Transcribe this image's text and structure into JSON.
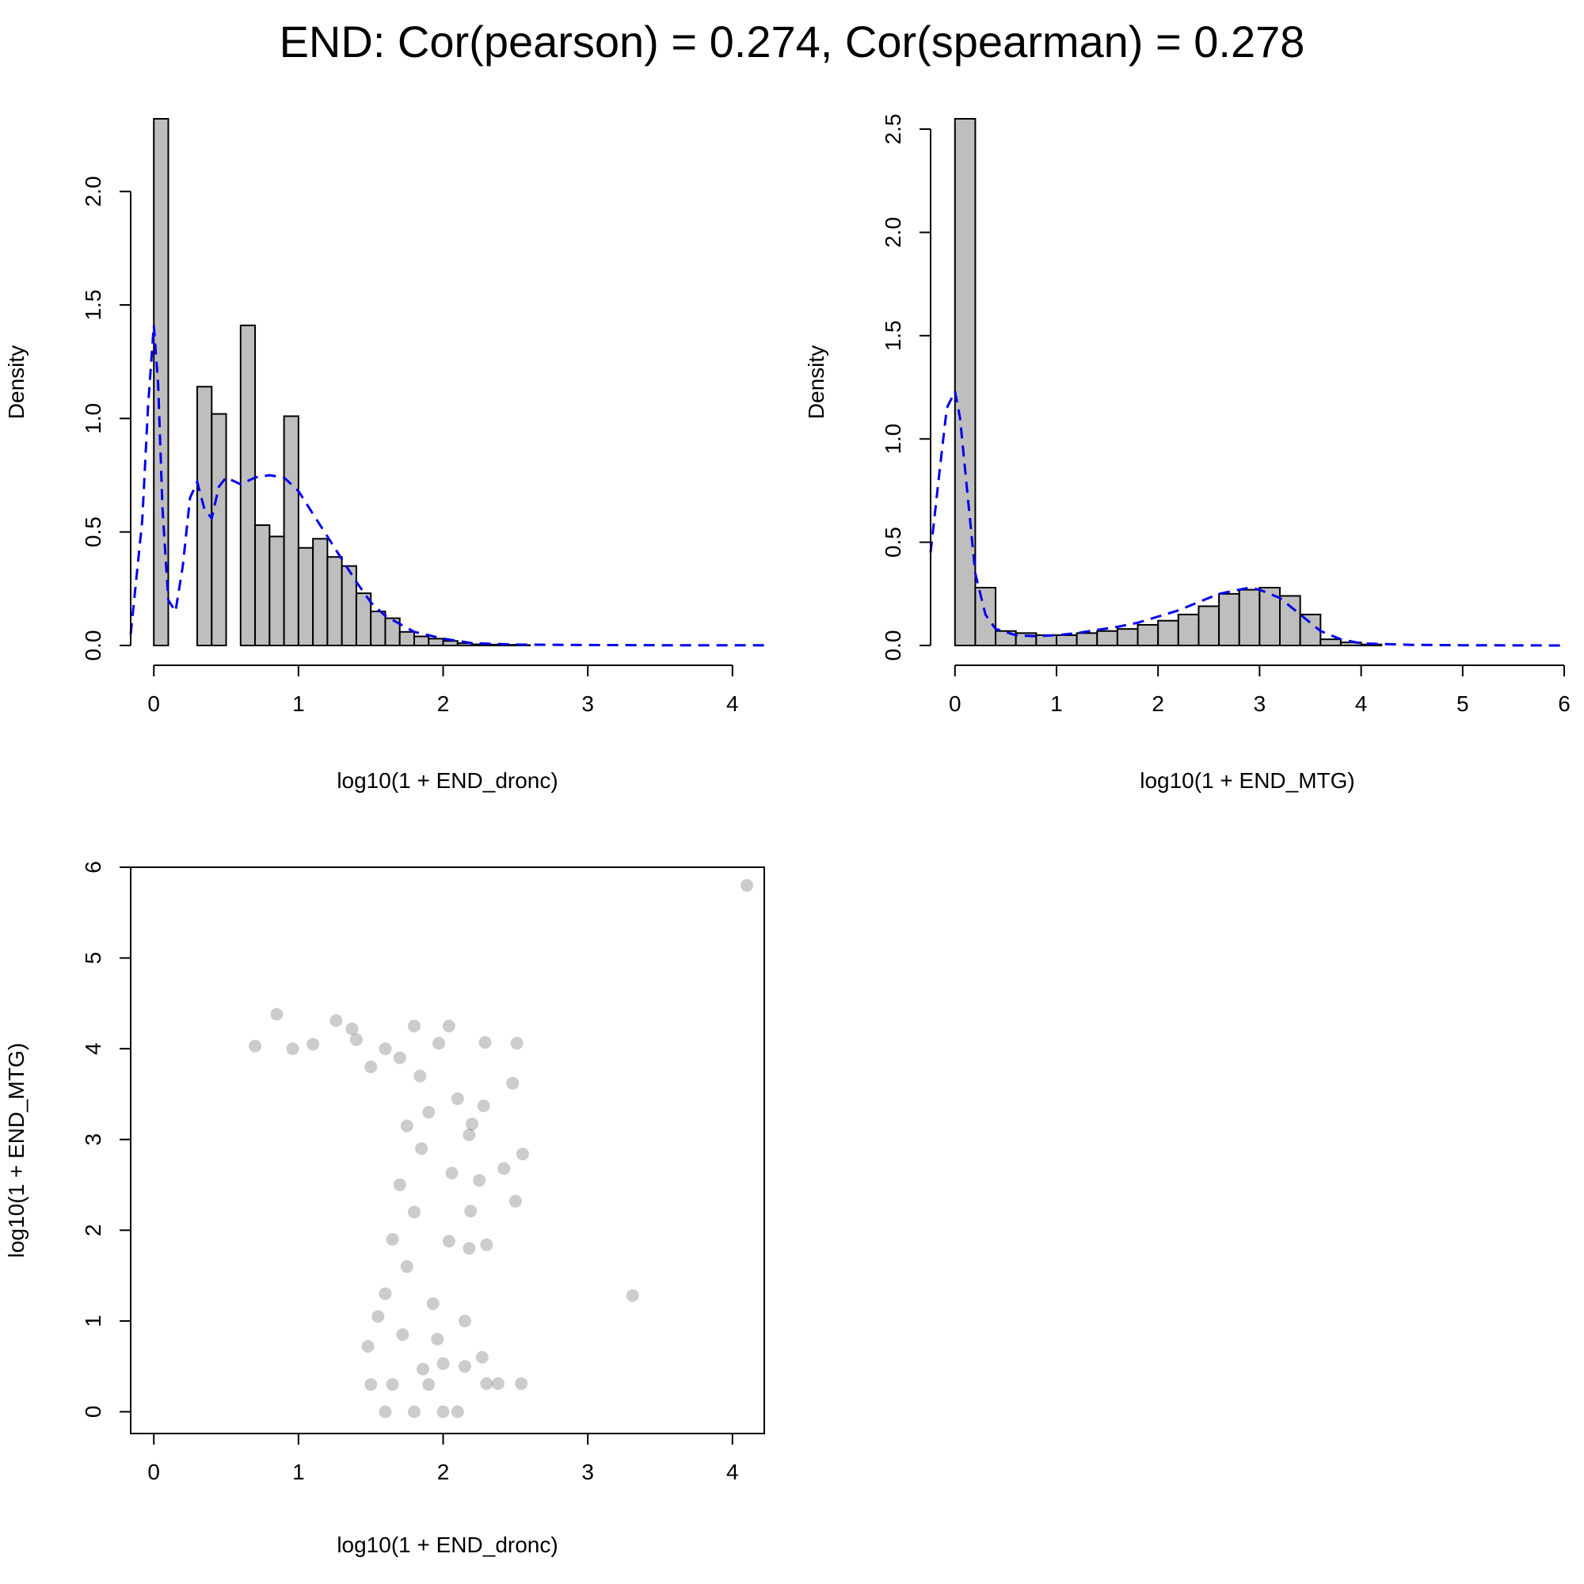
{
  "title": "END: Cor(pearson) = 0.274, Cor(spearman) = 0.278",
  "colors": {
    "bar_fill": "#bebebe",
    "bar_stroke": "#000000",
    "density": "#0000ee",
    "points": "#000000"
  },
  "chart_data": [
    {
      "type": "bar",
      "subtype": "histogram",
      "xlabel": "log10(1 + END_dronc)",
      "ylabel": "Density",
      "xlim": [
        -0.16,
        4.22
      ],
      "ylim": [
        0,
        2.32
      ],
      "x_ticks": [
        0,
        1,
        2,
        3,
        4
      ],
      "y_ticks": [
        0.0,
        0.5,
        1.0,
        1.5,
        2.0
      ],
      "y_tick_labels": [
        "0.0",
        "0.5",
        "1.0",
        "1.5",
        "2.0"
      ],
      "bin_width": 0.1,
      "bins": [
        {
          "x0": 0.0,
          "v": 2.32
        },
        {
          "x0": 0.1,
          "v": 0
        },
        {
          "x0": 0.2,
          "v": 0
        },
        {
          "x0": 0.3,
          "v": 1.14
        },
        {
          "x0": 0.4,
          "v": 1.02
        },
        {
          "x0": 0.5,
          "v": 0
        },
        {
          "x0": 0.6,
          "v": 1.41
        },
        {
          "x0": 0.7,
          "v": 0.53
        },
        {
          "x0": 0.8,
          "v": 0.48
        },
        {
          "x0": 0.9,
          "v": 1.01
        },
        {
          "x0": 1.0,
          "v": 0.43
        },
        {
          "x0": 1.1,
          "v": 0.47
        },
        {
          "x0": 1.2,
          "v": 0.39
        },
        {
          "x0": 1.3,
          "v": 0.35
        },
        {
          "x0": 1.4,
          "v": 0.23
        },
        {
          "x0": 1.5,
          "v": 0.15
        },
        {
          "x0": 1.6,
          "v": 0.12
        },
        {
          "x0": 1.7,
          "v": 0.06
        },
        {
          "x0": 1.8,
          "v": 0.04
        },
        {
          "x0": 1.9,
          "v": 0.03
        },
        {
          "x0": 2.0,
          "v": 0.02
        },
        {
          "x0": 2.1,
          "v": 0.01
        },
        {
          "x0": 2.2,
          "v": 0.005
        },
        {
          "x0": 2.3,
          "v": 0.004
        },
        {
          "x0": 2.4,
          "v": 0.003
        },
        {
          "x0": 2.5,
          "v": 0.002
        }
      ],
      "density": {
        "x": [
          -0.16,
          -0.08,
          -0.04,
          0.0,
          0.03,
          0.06,
          0.1,
          0.15,
          0.2,
          0.25,
          0.3,
          0.35,
          0.4,
          0.45,
          0.5,
          0.6,
          0.7,
          0.8,
          0.9,
          1.0,
          1.1,
          1.2,
          1.3,
          1.4,
          1.5,
          1.6,
          1.8,
          2.0,
          2.2,
          2.5,
          3.0,
          3.5,
          4.22
        ],
        "y": [
          0.05,
          0.55,
          1.05,
          1.41,
          1.15,
          0.6,
          0.2,
          0.15,
          0.35,
          0.65,
          0.72,
          0.6,
          0.56,
          0.7,
          0.74,
          0.71,
          0.74,
          0.75,
          0.74,
          0.68,
          0.58,
          0.48,
          0.38,
          0.28,
          0.19,
          0.13,
          0.06,
          0.03,
          0.01,
          0.004,
          0.002,
          0.001,
          0.001
        ]
      }
    },
    {
      "type": "bar",
      "subtype": "histogram",
      "xlabel": "log10(1 + END_MTG)",
      "ylabel": "Density",
      "xlim": [
        -0.24,
        6.0
      ],
      "ylim": [
        0,
        2.55
      ],
      "x_ticks": [
        0,
        1,
        2,
        3,
        4,
        5,
        6
      ],
      "y_ticks": [
        0.0,
        0.5,
        1.0,
        1.5,
        2.0,
        2.5
      ],
      "y_tick_labels": [
        "0.0",
        "0.5",
        "1.0",
        "1.5",
        "2.0",
        "2.5"
      ],
      "bin_width": 0.2,
      "bins": [
        {
          "x0": 0.0,
          "v": 2.55
        },
        {
          "x0": 0.2,
          "v": 0.28
        },
        {
          "x0": 0.4,
          "v": 0.07
        },
        {
          "x0": 0.6,
          "v": 0.06
        },
        {
          "x0": 0.8,
          "v": 0.05
        },
        {
          "x0": 1.0,
          "v": 0.05
        },
        {
          "x0": 1.2,
          "v": 0.06
        },
        {
          "x0": 1.4,
          "v": 0.07
        },
        {
          "x0": 1.6,
          "v": 0.08
        },
        {
          "x0": 1.8,
          "v": 0.1
        },
        {
          "x0": 2.0,
          "v": 0.12
        },
        {
          "x0": 2.2,
          "v": 0.15
        },
        {
          "x0": 2.4,
          "v": 0.19
        },
        {
          "x0": 2.6,
          "v": 0.25
        },
        {
          "x0": 2.8,
          "v": 0.27
        },
        {
          "x0": 3.0,
          "v": 0.28
        },
        {
          "x0": 3.2,
          "v": 0.24
        },
        {
          "x0": 3.4,
          "v": 0.15
        },
        {
          "x0": 3.6,
          "v": 0.03
        },
        {
          "x0": 3.8,
          "v": 0.015
        },
        {
          "x0": 4.0,
          "v": 0.005
        }
      ],
      "density": {
        "x": [
          -0.24,
          -0.15,
          -0.08,
          0.0,
          0.05,
          0.1,
          0.15,
          0.2,
          0.3,
          0.4,
          0.6,
          0.8,
          1.0,
          1.2,
          1.4,
          1.6,
          1.8,
          2.0,
          2.2,
          2.4,
          2.6,
          2.8,
          2.9,
          3.0,
          3.2,
          3.4,
          3.6,
          3.8,
          4.0,
          4.5,
          5.0,
          6.0
        ],
        "y": [
          0.45,
          0.85,
          1.15,
          1.23,
          1.1,
          0.85,
          0.6,
          0.35,
          0.15,
          0.08,
          0.05,
          0.045,
          0.05,
          0.06,
          0.075,
          0.09,
          0.11,
          0.14,
          0.17,
          0.21,
          0.25,
          0.27,
          0.28,
          0.27,
          0.23,
          0.15,
          0.07,
          0.03,
          0.01,
          0.003,
          0.001,
          0.0
        ]
      }
    },
    {
      "type": "scatter",
      "xlabel": "log10(1 + END_dronc)",
      "ylabel": "log10(1 + END_MTG)",
      "xlim": [
        -0.16,
        4.22
      ],
      "ylim": [
        -0.24,
        6.0
      ],
      "x_ticks": [
        0,
        1,
        2,
        3,
        4
      ],
      "y_ticks": [
        0,
        1,
        2,
        3,
        4,
        5,
        6
      ],
      "point_color": "#000000",
      "point_alpha": 0.2,
      "points": [
        [
          4.1,
          5.8
        ],
        [
          3.31,
          1.28
        ],
        [
          0.85,
          4.38
        ],
        [
          1.26,
          4.31
        ],
        [
          1.37,
          4.22
        ],
        [
          1.8,
          4.25
        ],
        [
          2.04,
          4.25
        ],
        [
          1.97,
          4.06
        ],
        [
          2.29,
          4.07
        ],
        [
          2.51,
          4.06
        ],
        [
          2.48,
          3.62
        ],
        [
          2.28,
          3.37
        ],
        [
          2.2,
          3.17
        ],
        [
          2.1,
          3.45
        ],
        [
          2.18,
          3.05
        ],
        [
          2.55,
          2.84
        ],
        [
          2.42,
          2.68
        ],
        [
          2.25,
          2.55
        ],
        [
          2.06,
          2.63
        ],
        [
          2.19,
          2.21
        ],
        [
          2.5,
          2.32
        ],
        [
          2.3,
          1.84
        ],
        [
          2.18,
          1.8
        ],
        [
          2.04,
          1.88
        ],
        [
          2.15,
          1.0
        ],
        [
          1.96,
          0.8
        ],
        [
          1.93,
          1.19
        ],
        [
          2.27,
          0.6
        ],
        [
          2.0,
          0.53
        ],
        [
          2.15,
          0.5
        ],
        [
          2.3,
          0.31
        ],
        [
          2.38,
          0.31
        ],
        [
          2.54,
          0.31
        ],
        [
          2.1,
          0.0
        ],
        [
          2.0,
          0.0
        ],
        [
          1.7,
          3.9
        ],
        [
          1.6,
          4.0
        ],
        [
          1.5,
          3.8
        ],
        [
          1.4,
          4.1
        ],
        [
          1.1,
          4.05
        ],
        [
          0.96,
          4.0
        ],
        [
          0.7,
          4.03
        ],
        [
          1.84,
          3.7
        ],
        [
          1.9,
          3.3
        ],
        [
          1.75,
          3.15
        ],
        [
          1.85,
          2.9
        ],
        [
          1.7,
          2.5
        ],
        [
          1.8,
          2.2
        ],
        [
          1.65,
          1.9
        ],
        [
          1.75,
          1.6
        ],
        [
          1.6,
          1.3
        ],
        [
          1.55,
          1.05
        ],
        [
          1.72,
          0.85
        ],
        [
          1.48,
          0.72
        ],
        [
          1.86,
          0.47
        ],
        [
          1.65,
          0.3
        ],
        [
          1.9,
          0.3
        ],
        [
          1.5,
          0.3
        ],
        [
          1.8,
          0.0
        ],
        [
          1.6,
          0.0
        ]
      ]
    }
  ]
}
